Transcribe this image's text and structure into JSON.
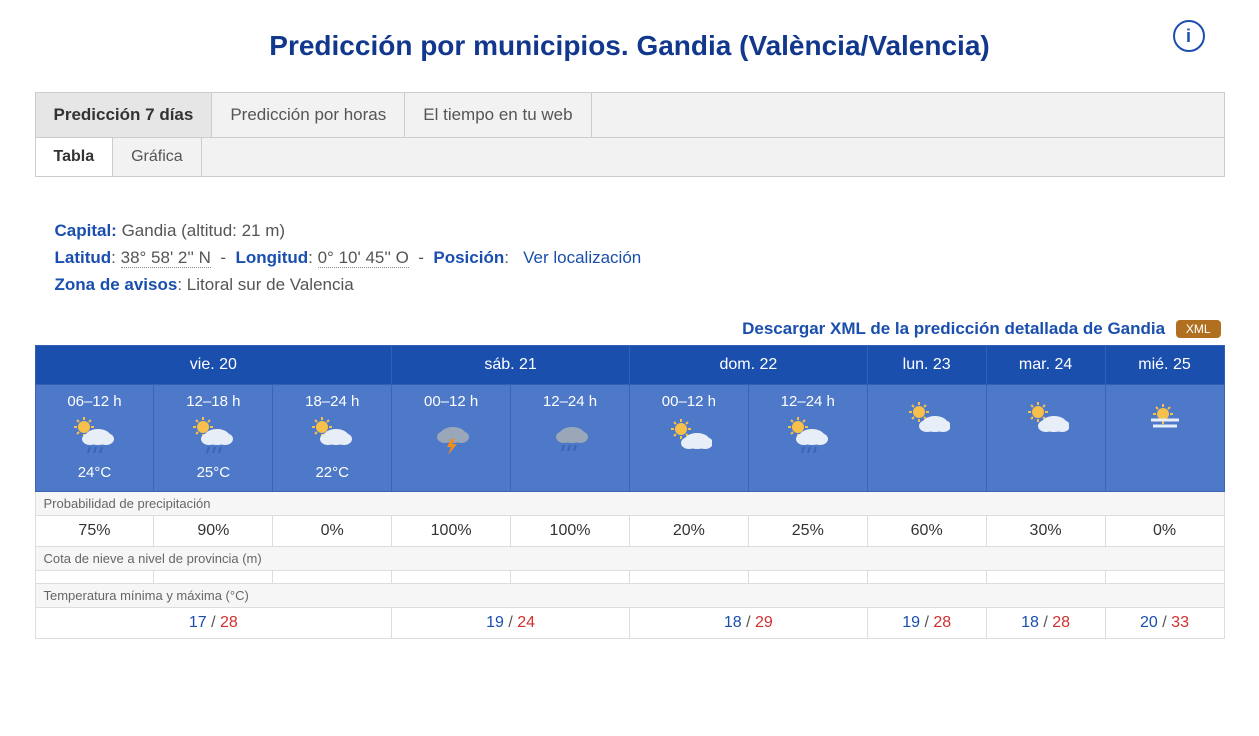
{
  "title": "Predicción por municipios. Gandia (València/Valencia)",
  "tabs": {
    "t0": "Predicción 7 días",
    "t1": "Predicción por horas",
    "t2": "El tiempo en tu web"
  },
  "subtabs": {
    "s0": "Tabla",
    "s1": "Gráfica"
  },
  "meta": {
    "capital_k": "Capital:",
    "capital_v": "Gandia (altitud: 21 m)",
    "lat_k": "Latitud",
    "lat_v": "38° 58' 2'' N",
    "lon_k": "Longitud",
    "lon_v": "0° 10' 45'' O",
    "pos_k": "Posición",
    "pos_link": "Ver localización",
    "zone_k": "Zona de avisos",
    "zone_v": "Litoral sur de Valencia"
  },
  "xml": {
    "text": "Descargar XML de la predicción detallada de Gandia",
    "badge": "XML"
  },
  "days": {
    "d0": "vie. 20",
    "d1": "sáb. 21",
    "d2": "dom. 22",
    "d3": "lun. 23",
    "d4": "mar. 24",
    "d5": "mié. 25"
  },
  "slots": {
    "c0": {
      "hrs": "06–12 h",
      "temp": "24°C",
      "icon": "rain_sun"
    },
    "c1": {
      "hrs": "12–18 h",
      "temp": "25°C",
      "icon": "rain_sun"
    },
    "c2": {
      "hrs": "18–24 h",
      "temp": "22°C",
      "icon": "cloud"
    },
    "c3": {
      "hrs": "00–12 h",
      "temp": "",
      "icon": "storm"
    },
    "c4": {
      "hrs": "12–24 h",
      "temp": "",
      "icon": "rain"
    },
    "c5": {
      "hrs": "00–12 h",
      "temp": "",
      "icon": "part_sun"
    },
    "c6": {
      "hrs": "12–24 h",
      "temp": "",
      "icon": "rain_sun"
    },
    "c7": {
      "hrs": "",
      "temp": "",
      "icon": "part_sun"
    },
    "c8": {
      "hrs": "",
      "temp": "",
      "icon": "part_sun"
    },
    "c9": {
      "hrs": "",
      "temp": "",
      "icon": "haze_sun"
    }
  },
  "sections": {
    "precip_label": "Probabilidad de precipitación",
    "snow_label": "Cota de nieve a nivel de provincia (m)",
    "temp_label": "Temperatura mínima y máxima (°C)"
  },
  "precip": {
    "c0": "75%",
    "c1": "90%",
    "c2": "0%",
    "c3": "100%",
    "c4": "100%",
    "c5": "20%",
    "c6": "25%",
    "c7": "60%",
    "c8": "30%",
    "c9": "0%"
  },
  "snow": {
    "c0": "",
    "c1": "",
    "c2": "",
    "c3": "",
    "c4": "",
    "c5": "",
    "c6": "",
    "c7": "",
    "c8": "",
    "c9": ""
  },
  "minmax": {
    "g0": {
      "min": "17",
      "max": "28"
    },
    "g1": {
      "min": "19",
      "max": "24"
    },
    "g2": {
      "min": "18",
      "max": "29"
    },
    "g3": {
      "min": "19",
      "max": "28"
    },
    "g4": {
      "min": "18",
      "max": "28"
    },
    "g5": {
      "min": "20",
      "max": "33"
    }
  },
  "colors": {
    "brand": "#1a4fae",
    "header_blue": "#1a4fae",
    "cell_blue": "#4e78c8",
    "tmin": "#1a4fae",
    "tmax": "#d03030"
  }
}
